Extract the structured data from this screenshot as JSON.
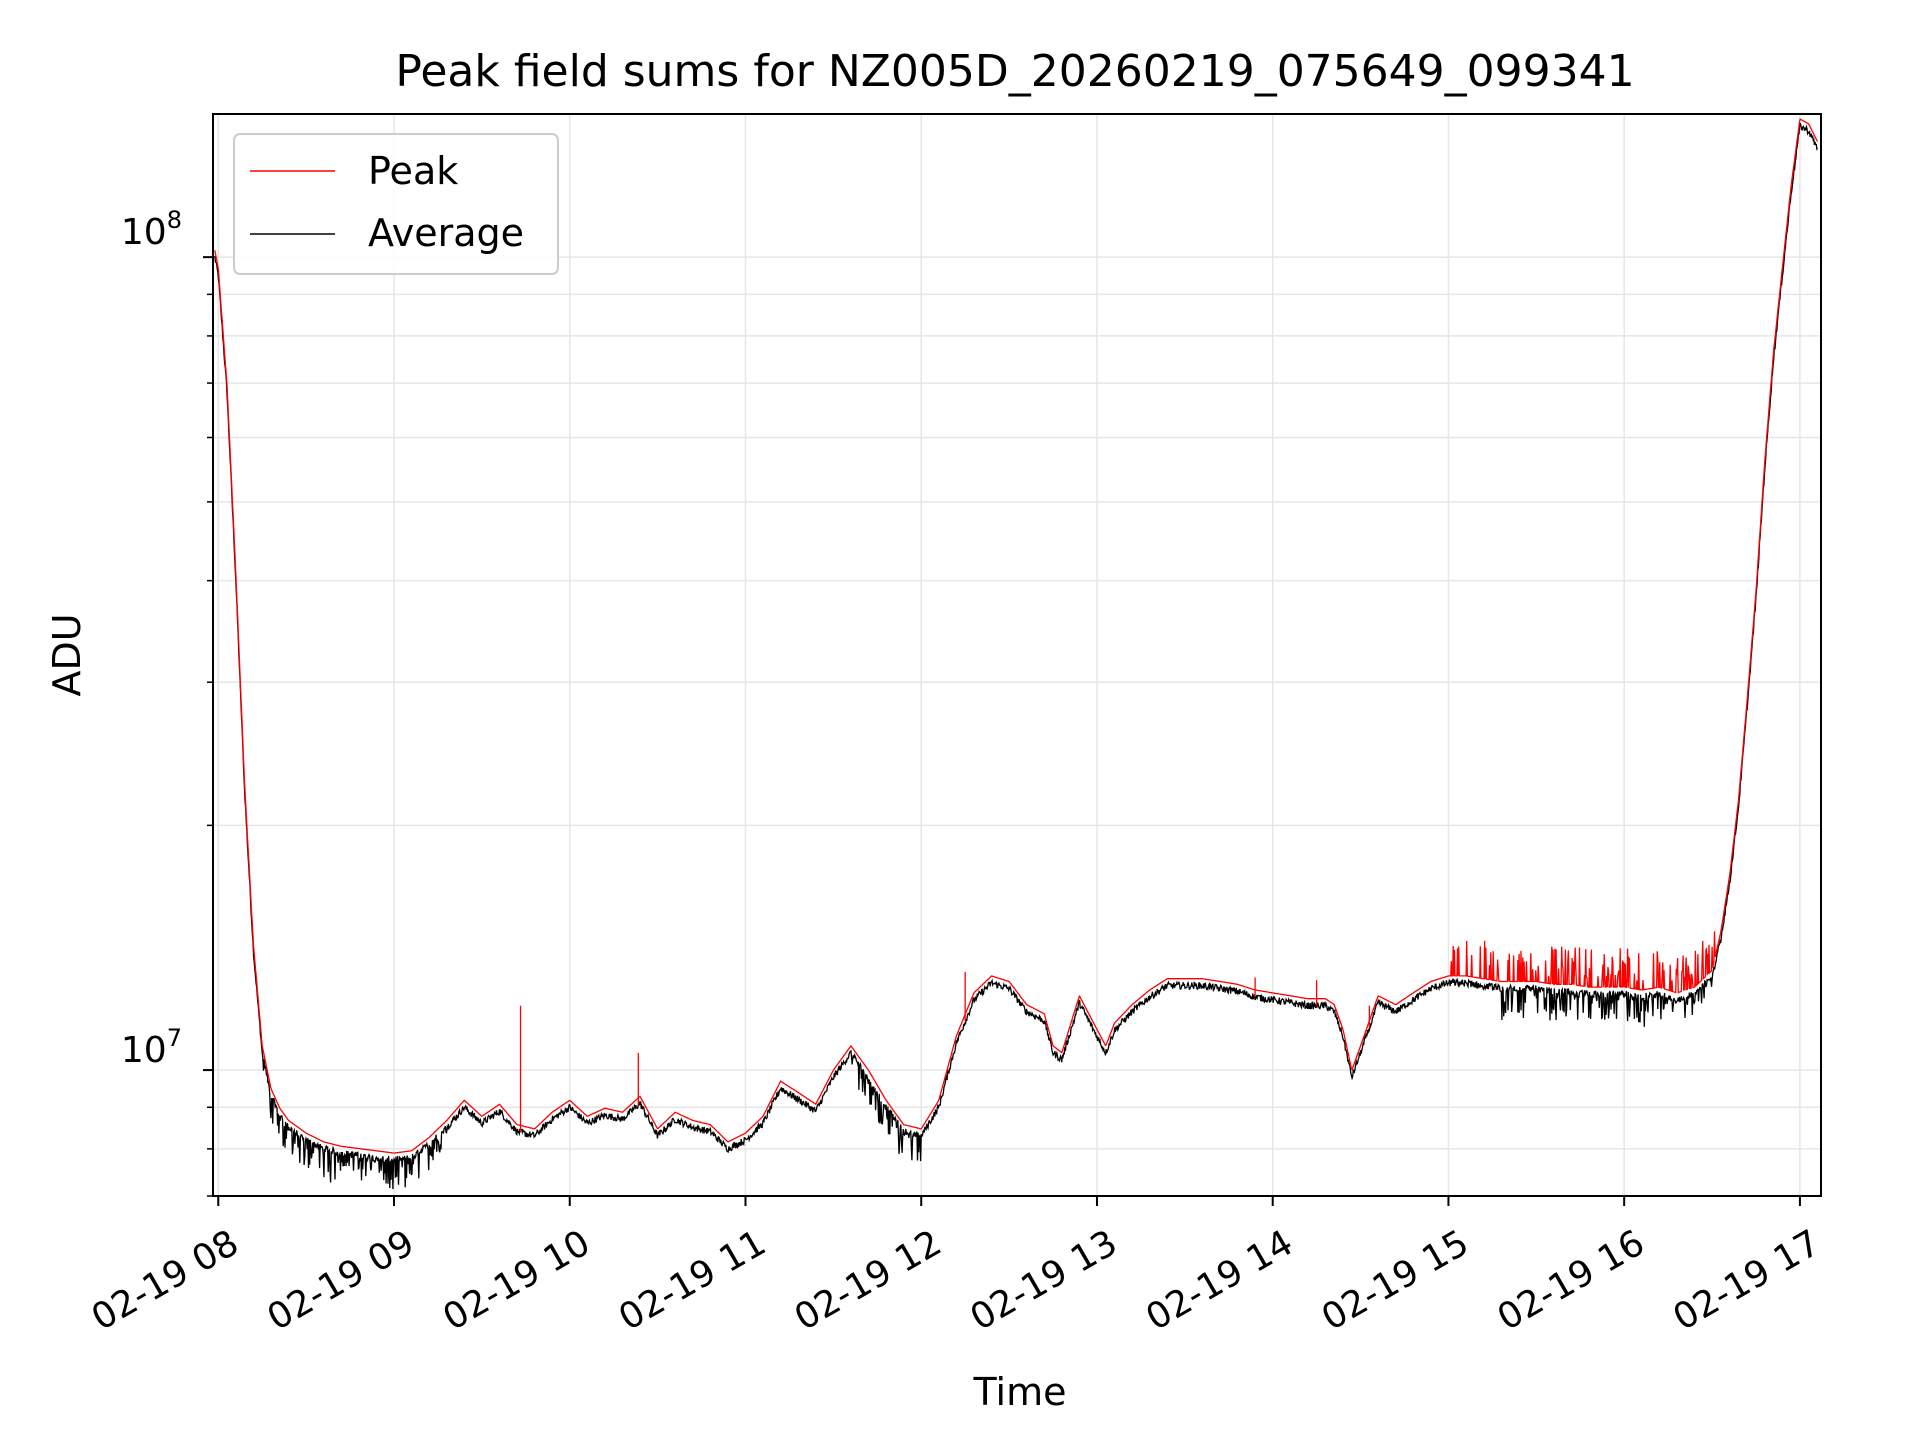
{
  "chart_data": {
    "type": "line",
    "title": "Peak field sums for NZ005D_20260219_075649_099341",
    "xlabel": "Time",
    "ylabel": "ADU",
    "yscale": "log",
    "ylim": [
      7000000,
      150000000
    ],
    "xlim_hours": [
      7.97,
      17.12
    ],
    "y_tick_major": [
      {
        "value": 10000000,
        "base": "10",
        "exp": "7"
      },
      {
        "value": 100000000,
        "base": "10",
        "exp": "8"
      }
    ],
    "x_ticks": [
      {
        "hour": 8,
        "label": "02-19 08"
      },
      {
        "hour": 9,
        "label": "02-19 09"
      },
      {
        "hour": 10,
        "label": "02-19 10"
      },
      {
        "hour": 11,
        "label": "02-19 11"
      },
      {
        "hour": 12,
        "label": "02-19 12"
      },
      {
        "hour": 13,
        "label": "02-19 13"
      },
      {
        "hour": 14,
        "label": "02-19 14"
      },
      {
        "hour": 15,
        "label": "02-19 15"
      },
      {
        "hour": 16,
        "label": "02-19 16"
      },
      {
        "hour": 17,
        "label": "02-19 17"
      }
    ],
    "grid": true,
    "legend_position": "upper-left",
    "series": [
      {
        "name": "Peak",
        "color": "#ff0000"
      },
      {
        "name": "Average",
        "color": "#000000"
      }
    ],
    "average_curve": {
      "hours": [
        7.98,
        8.0,
        8.05,
        8.1,
        8.15,
        8.2,
        8.25,
        8.3,
        8.35,
        8.4,
        8.5,
        8.6,
        8.7,
        8.8,
        8.9,
        9.0,
        9.1,
        9.2,
        9.3,
        9.4,
        9.5,
        9.6,
        9.7,
        9.8,
        9.9,
        10.0,
        10.1,
        10.2,
        10.3,
        10.4,
        10.5,
        10.6,
        10.7,
        10.8,
        10.9,
        11.0,
        11.1,
        11.2,
        11.3,
        11.4,
        11.5,
        11.6,
        11.7,
        11.8,
        11.9,
        12.0,
        12.1,
        12.2,
        12.3,
        12.4,
        12.5,
        12.6,
        12.7,
        12.75,
        12.8,
        12.9,
        13.0,
        13.05,
        13.1,
        13.2,
        13.3,
        13.4,
        13.5,
        13.6,
        13.7,
        13.8,
        13.9,
        14.0,
        14.1,
        14.2,
        14.3,
        14.35,
        14.4,
        14.45,
        14.5,
        14.6,
        14.7,
        14.8,
        14.9,
        15.0,
        15.1,
        15.2,
        15.3,
        15.4,
        15.5,
        15.6,
        15.7,
        15.8,
        15.9,
        16.0,
        16.1,
        16.2,
        16.3,
        16.4,
        16.5,
        16.55,
        16.6,
        16.65,
        16.7,
        16.75,
        16.8,
        16.85,
        16.9,
        16.95,
        17.0,
        17.05,
        17.1
      ],
      "values": [
        100000000,
        95000000,
        68000000,
        40000000,
        22000000,
        14000000,
        10500000,
        9300000,
        8800000,
        8500000,
        8200000,
        8000000,
        7900000,
        7850000,
        7800000,
        7750000,
        7800000,
        8100000,
        8500000,
        9000000,
        8600000,
        8900000,
        8400000,
        8300000,
        8700000,
        9000000,
        8600000,
        8800000,
        8700000,
        9100000,
        8300000,
        8700000,
        8500000,
        8400000,
        8000000,
        8200000,
        8600000,
        9500000,
        9200000,
        8900000,
        9800000,
        10500000,
        9800000,
        9000000,
        8400000,
        8300000,
        9000000,
        10800000,
        12200000,
        12800000,
        12600000,
        11800000,
        11500000,
        10500000,
        10300000,
        12100000,
        11000000,
        10500000,
        11200000,
        11800000,
        12300000,
        12700000,
        12700000,
        12700000,
        12600000,
        12500000,
        12300000,
        12200000,
        12100000,
        12000000,
        12000000,
        11800000,
        11000000,
        9800000,
        10500000,
        12100000,
        11800000,
        12200000,
        12600000,
        12800000,
        12800000,
        12700000,
        12600000,
        12600000,
        12600000,
        12500000,
        12500000,
        12400000,
        12400000,
        12400000,
        12300000,
        12400000,
        12200000,
        12400000,
        13000000,
        14500000,
        17000000,
        21000000,
        28000000,
        38000000,
        55000000,
        75000000,
        95000000,
        120000000,
        145000000,
        143000000,
        136000000
      ]
    }
  }
}
